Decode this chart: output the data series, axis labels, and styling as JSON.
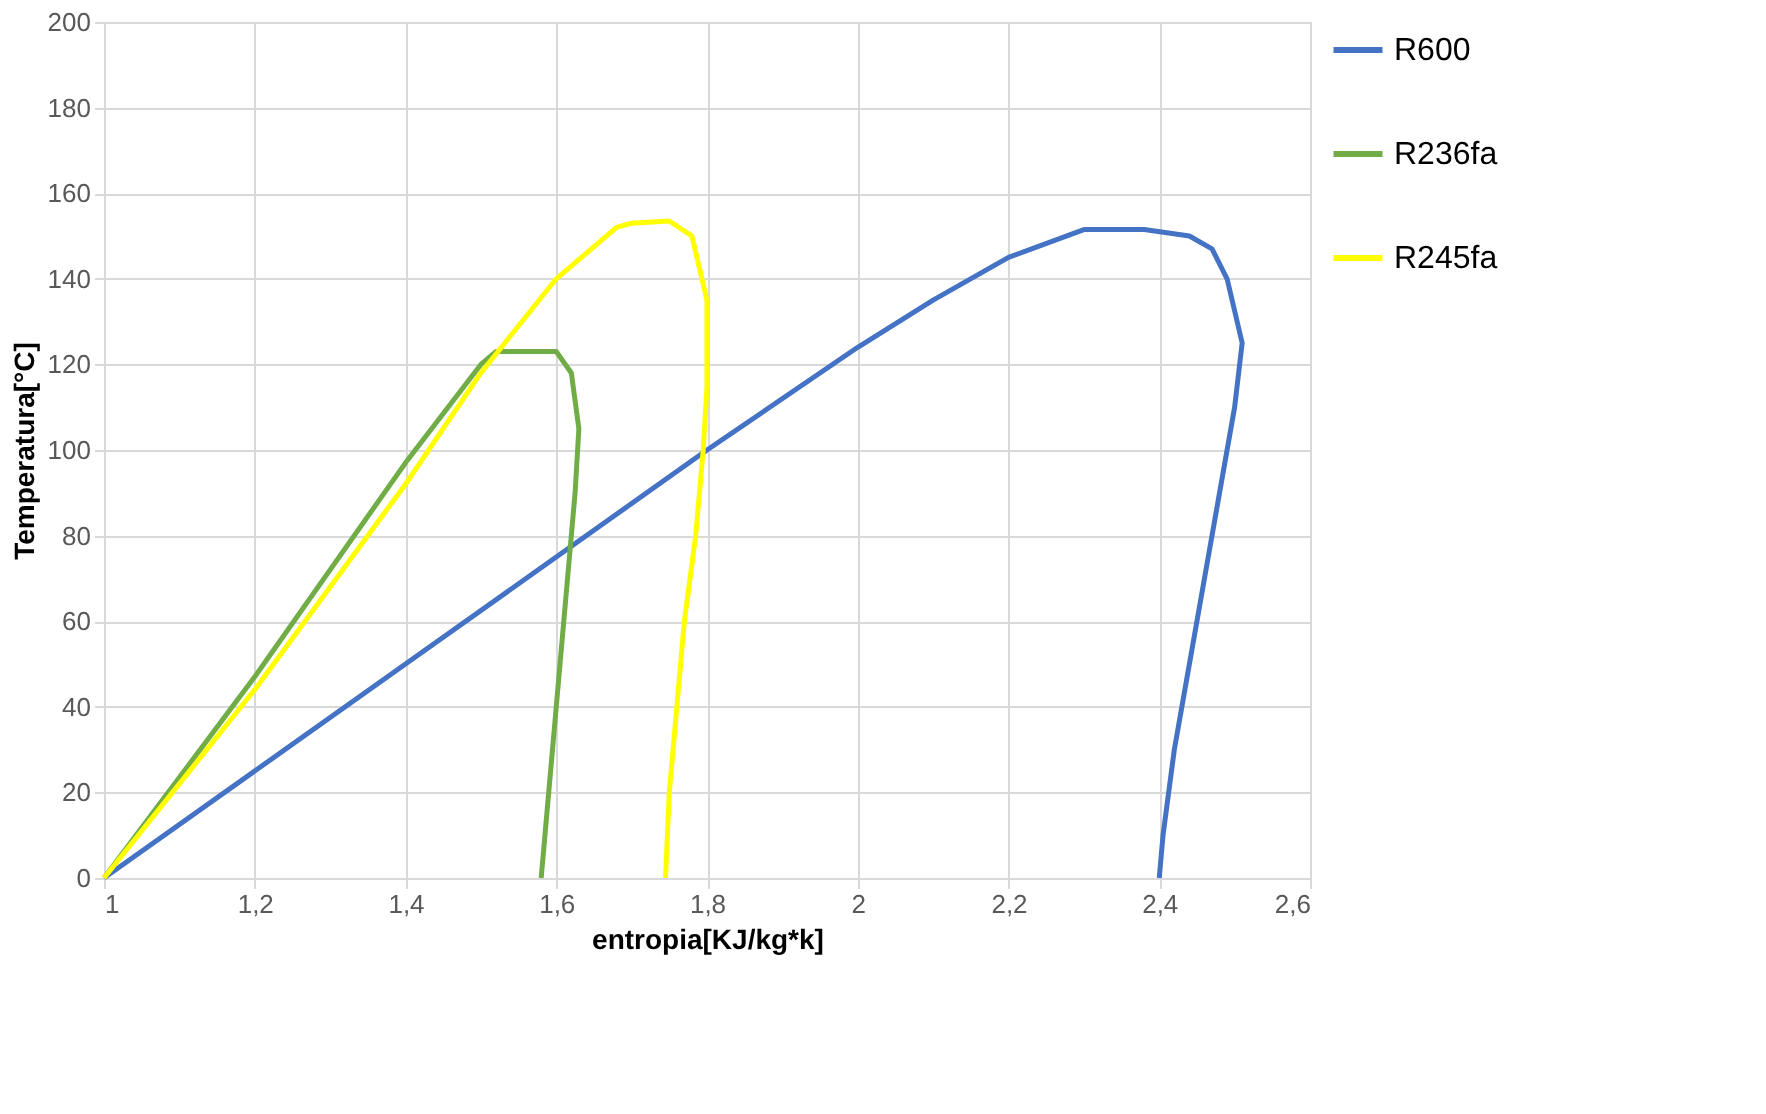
{
  "chart_data": {
    "type": "line",
    "xlabel": "entropia[KJ/kg*k]",
    "ylabel": "Temperatura[°C]",
    "xlim": [
      1,
      2.6
    ],
    "ylim": [
      0,
      200
    ],
    "xticks": [
      1,
      {
        "value": 1.2,
        "label": "1,2"
      },
      {
        "value": 1.4,
        "label": "1,4"
      },
      {
        "value": 1.6,
        "label": "1,6"
      },
      {
        "value": 1.8,
        "label": "1,8"
      },
      2,
      {
        "value": 2.2,
        "label": "2,2"
      },
      {
        "value": 2.4,
        "label": "2,4"
      },
      {
        "value": 2.6,
        "label": "2,6"
      }
    ],
    "yticks": [
      0,
      20,
      40,
      60,
      80,
      100,
      120,
      140,
      160,
      180,
      200
    ],
    "grid": true,
    "legend": "right",
    "marker": "none",
    "line_style": "solid",
    "series": [
      {
        "name": "R600",
        "color": "#4472c4",
        "x": [
          1,
          1.4,
          1.8,
          2.0,
          2.1,
          2.2,
          2.3,
          2.38,
          2.44,
          2.47,
          2.49,
          2.51,
          2.5,
          2.48,
          2.46,
          2.44,
          2.42,
          2.405,
          2.4
        ],
        "values": [
          0,
          50,
          100,
          124,
          135,
          145,
          151.5,
          151.5,
          150,
          147,
          140,
          125,
          110,
          90,
          70,
          50,
          30,
          10,
          0
        ]
      },
      {
        "name": "R236fa",
        "color": "#70ad47",
        "x": [
          1,
          1.2,
          1.4,
          1.5,
          1.52,
          1.6,
          1.62,
          1.63,
          1.625,
          1.615,
          1.605,
          1.595,
          1.585,
          1.58
        ],
        "values": [
          0,
          47,
          97,
          120,
          123,
          123,
          118,
          105,
          90,
          70,
          50,
          30,
          10,
          0
        ]
      },
      {
        "name": "R245fa",
        "color": "#ffff00",
        "x": [
          1,
          1.2,
          1.4,
          1.5,
          1.6,
          1.68,
          1.7,
          1.75,
          1.78,
          1.8,
          1.8,
          1.795,
          1.785,
          1.77,
          1.76,
          1.75,
          1.745
        ],
        "values": [
          0,
          44,
          92,
          118,
          140,
          152,
          153,
          153.5,
          150,
          135,
          115,
          100,
          80,
          60,
          40,
          20,
          0
        ]
      }
    ]
  }
}
